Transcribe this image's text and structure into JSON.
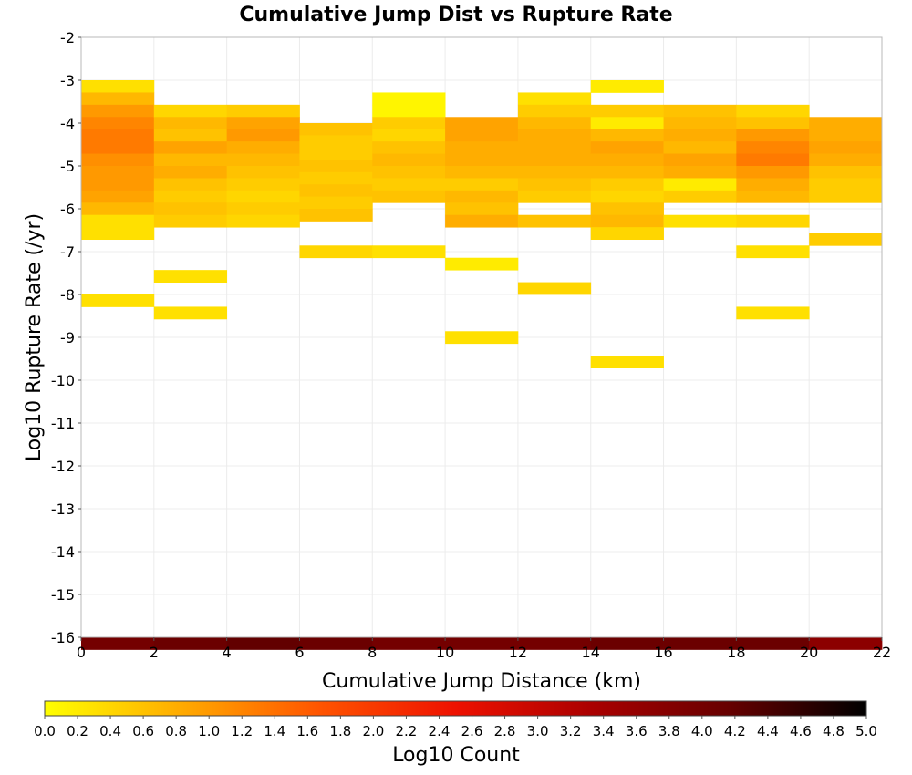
{
  "chart_data": {
    "type": "heatmap",
    "title": "Cumulative Jump Dist vs Rupture Rate",
    "xlabel": "Cumulative Jump Distance (km)",
    "ylabel": "Log10 Rupture Rate (/yr)",
    "xlim": [
      0,
      22
    ],
    "ylim": [
      -16,
      -2
    ],
    "x_ticks": [
      0,
      2,
      4,
      6,
      8,
      10,
      12,
      14,
      16,
      18,
      20,
      22
    ],
    "y_ticks": [
      -2,
      -3,
      -4,
      -5,
      -6,
      -7,
      -8,
      -9,
      -10,
      -11,
      -12,
      -13,
      -14,
      -15,
      -16
    ],
    "x_bin_width": 2,
    "y_bin_height": 0.286,
    "grid": true,
    "colorbar": {
      "label": "Log10 Count",
      "range": [
        0.0,
        5.0
      ],
      "ticks": [
        "0.0",
        "0.2",
        "0.4",
        "0.6",
        "0.8",
        "1.0",
        "1.2",
        "1.4",
        "1.6",
        "1.8",
        "2.0",
        "2.2",
        "2.4",
        "2.6",
        "2.8",
        "3.0",
        "3.2",
        "3.4",
        "3.6",
        "3.8",
        "4.0",
        "4.2",
        "4.4",
        "4.6",
        "4.8",
        "5.0"
      ],
      "stops": [
        "#ffff00",
        "#ffaa00",
        "#ff5500",
        "#ee1100",
        "#aa0000",
        "#660000",
        "#000000"
      ]
    },
    "columns": [
      {
        "x0": 0,
        "cells": [
          [
            -3.0,
            0.3
          ],
          [
            -3.286,
            0.7
          ],
          [
            -3.571,
            1.0
          ],
          [
            -3.857,
            1.2
          ],
          [
            -4.143,
            1.3
          ],
          [
            -4.429,
            1.3
          ],
          [
            -4.714,
            1.1
          ],
          [
            -5.0,
            1.0
          ],
          [
            -5.286,
            1.0
          ],
          [
            -5.571,
            0.9
          ],
          [
            -5.857,
            0.7
          ],
          [
            -6.143,
            0.3
          ],
          [
            -6.429,
            0.3
          ],
          [
            -8.0,
            0.3
          ],
          [
            -16.0,
            4.0
          ]
        ]
      },
      {
        "x0": 2,
        "cells": [
          [
            -3.571,
            0.4
          ],
          [
            -3.857,
            0.7
          ],
          [
            -4.143,
            0.6
          ],
          [
            -4.429,
            0.9
          ],
          [
            -4.714,
            0.7
          ],
          [
            -5.0,
            0.8
          ],
          [
            -5.286,
            0.6
          ],
          [
            -5.571,
            0.5
          ],
          [
            -5.857,
            0.6
          ],
          [
            -6.143,
            0.5
          ],
          [
            -7.429,
            0.3
          ],
          [
            -8.286,
            0.3
          ],
          [
            -16.0,
            4.1
          ]
        ]
      },
      {
        "x0": 4,
        "cells": [
          [
            -3.571,
            0.5
          ],
          [
            -3.857,
            0.9
          ],
          [
            -4.143,
            1.0
          ],
          [
            -4.429,
            0.8
          ],
          [
            -4.714,
            0.7
          ],
          [
            -5.0,
            0.6
          ],
          [
            -5.286,
            0.5
          ],
          [
            -5.571,
            0.4
          ],
          [
            -5.857,
            0.5
          ],
          [
            -6.143,
            0.4
          ],
          [
            -16.0,
            4.2
          ]
        ]
      },
      {
        "x0": 6,
        "cells": [
          [
            -4.0,
            0.6
          ],
          [
            -4.286,
            0.5
          ],
          [
            -4.571,
            0.5
          ],
          [
            -4.857,
            0.6
          ],
          [
            -5.143,
            0.5
          ],
          [
            -5.429,
            0.6
          ],
          [
            -5.714,
            0.5
          ],
          [
            -6.0,
            0.6
          ],
          [
            -6.857,
            0.4
          ],
          [
            -16.0,
            4.1
          ]
        ]
      },
      {
        "x0": 8,
        "cells": [
          [
            -3.286,
            0.1
          ],
          [
            -3.571,
            0.1
          ],
          [
            -3.857,
            0.5
          ],
          [
            -4.143,
            0.4
          ],
          [
            -4.429,
            0.6
          ],
          [
            -4.714,
            0.7
          ],
          [
            -5.0,
            0.6
          ],
          [
            -5.286,
            0.5
          ],
          [
            -5.571,
            0.6
          ],
          [
            -6.857,
            0.3
          ],
          [
            -16.0,
            4.0
          ]
        ]
      },
      {
        "x0": 10,
        "cells": [
          [
            -3.857,
            0.9
          ],
          [
            -4.143,
            0.9
          ],
          [
            -4.429,
            0.8
          ],
          [
            -4.714,
            0.8
          ],
          [
            -5.0,
            0.7
          ],
          [
            -5.286,
            0.5
          ],
          [
            -5.571,
            0.7
          ],
          [
            -5.857,
            0.6
          ],
          [
            -6.143,
            0.8
          ],
          [
            -7.143,
            0.2
          ],
          [
            -8.857,
            0.3
          ],
          [
            -16.0,
            4.0
          ]
        ]
      },
      {
        "x0": 12,
        "cells": [
          [
            -3.286,
            0.3
          ],
          [
            -3.571,
            0.5
          ],
          [
            -3.857,
            0.7
          ],
          [
            -4.143,
            0.8
          ],
          [
            -4.429,
            0.8
          ],
          [
            -4.714,
            0.8
          ],
          [
            -5.0,
            0.7
          ],
          [
            -5.286,
            0.6
          ],
          [
            -5.571,
            0.5
          ],
          [
            -6.143,
            0.6
          ],
          [
            -7.714,
            0.4
          ],
          [
            -16.0,
            4.0
          ]
        ]
      },
      {
        "x0": 14,
        "cells": [
          [
            -3.0,
            0.2
          ],
          [
            -3.571,
            0.5
          ],
          [
            -3.857,
            0.2
          ],
          [
            -4.143,
            0.7
          ],
          [
            -4.429,
            0.9
          ],
          [
            -4.714,
            0.8
          ],
          [
            -5.0,
            0.7
          ],
          [
            -5.286,
            0.5
          ],
          [
            -5.571,
            0.4
          ],
          [
            -5.857,
            0.6
          ],
          [
            -6.143,
            0.7
          ],
          [
            -6.429,
            0.4
          ],
          [
            -9.429,
            0.3
          ],
          [
            -16.0,
            4.1
          ]
        ]
      },
      {
        "x0": 16,
        "cells": [
          [
            -3.571,
            0.6
          ],
          [
            -3.857,
            0.7
          ],
          [
            -4.143,
            0.8
          ],
          [
            -4.429,
            0.7
          ],
          [
            -4.714,
            0.9
          ],
          [
            -5.0,
            0.8
          ],
          [
            -5.286,
            0.2
          ],
          [
            -5.571,
            0.5
          ],
          [
            -6.143,
            0.3
          ],
          [
            -16.0,
            4.1
          ]
        ]
      },
      {
        "x0": 18,
        "cells": [
          [
            -3.571,
            0.4
          ],
          [
            -3.857,
            0.6
          ],
          [
            -4.143,
            1.0
          ],
          [
            -4.429,
            1.2
          ],
          [
            -4.714,
            1.3
          ],
          [
            -5.0,
            1.0
          ],
          [
            -5.286,
            0.8
          ],
          [
            -5.571,
            0.7
          ],
          [
            -6.143,
            0.4
          ],
          [
            -6.857,
            0.3
          ],
          [
            -8.286,
            0.3
          ],
          [
            -16.0,
            4.1
          ]
        ]
      },
      {
        "x0": 20,
        "cells": [
          [
            -3.857,
            0.8
          ],
          [
            -4.143,
            0.8
          ],
          [
            -4.429,
            0.9
          ],
          [
            -4.714,
            0.8
          ],
          [
            -5.0,
            0.6
          ],
          [
            -5.286,
            0.5
          ],
          [
            -5.571,
            0.5
          ],
          [
            -6.571,
            0.5
          ],
          [
            -16.0,
            3.7
          ]
        ]
      }
    ]
  }
}
